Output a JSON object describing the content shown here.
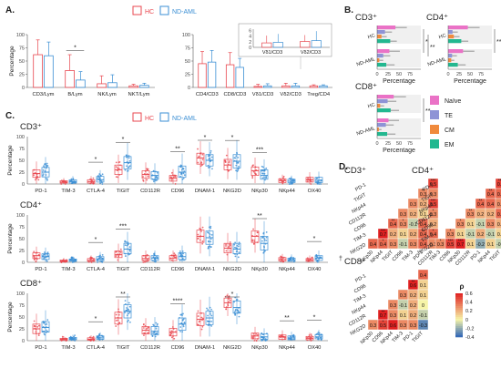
{
  "colors": {
    "hc": "#e8474f",
    "aml": "#3b8fd4",
    "naive": "#ea72c6",
    "te": "#8e93d6",
    "cm": "#f08a3c",
    "em": "#22b890",
    "rho_neg": "#2c63b8",
    "rho_mid": "#f6f4a8",
    "rho_pos": "#e02020"
  },
  "legend": {
    "hc": "HC",
    "aml": "ND-AML"
  },
  "chart_data": [
    {
      "id": "A1",
      "panel": "A.",
      "type": "bar",
      "ylabel": "Percentage",
      "ylim": [
        0,
        100
      ],
      "yticks": [
        "0",
        "25",
        "50",
        "75",
        "100"
      ],
      "categories": [
        "CD3/Lym",
        "B/Lym",
        "NK/Lym",
        "NKT/Lym"
      ],
      "series": [
        {
          "name": "HC",
          "values": [
            62,
            32,
            7,
            3
          ],
          "err": [
            90,
            62,
            22,
            6
          ]
        },
        {
          "name": "ND-AML",
          "values": [
            60,
            14,
            9,
            4
          ],
          "err": [
            86,
            30,
            24,
            8
          ]
        }
      ],
      "sig": [
        {
          "index": 1,
          "label": "*"
        }
      ]
    },
    {
      "id": "A2",
      "type": "bar",
      "ylim": [
        0,
        100
      ],
      "yticks": [
        "0",
        "25",
        "50",
        "75",
        "100"
      ],
      "categories": [
        "CD4/CD3",
        "CD8/CD3",
        "Vδ1/CD3",
        "Vδ2/CD3",
        "Treg/CD4"
      ],
      "series": [
        {
          "name": "HC",
          "values": [
            45,
            43,
            2,
            3,
            3
          ],
          "err": [
            68,
            66,
            6,
            8,
            5
          ]
        },
        {
          "name": "ND-AML",
          "values": [
            48,
            38,
            3,
            3,
            3
          ],
          "err": [
            70,
            55,
            7,
            8,
            5
          ]
        }
      ],
      "inset": {
        "categories": [
          "Vδ1/CD3",
          "Vδ2/CD3"
        ],
        "yticks": [
          "0",
          "2",
          "4",
          "6"
        ],
        "ylim": [
          0,
          6.5
        ],
        "series": [
          {
            "name": "HC",
            "values": [
              1.6,
              2.1
            ],
            "err": [
              4.2,
              4.4
            ]
          },
          {
            "name": "ND-AML",
            "values": [
              1.8,
              2.4
            ],
            "err": [
              4.8,
              5.8
            ]
          }
        ]
      }
    },
    {
      "id": "B-CD3",
      "panel": "B.",
      "title": "CD3⁺",
      "type": "bar",
      "xlabel": "Percentage",
      "xlim": [
        0,
        100
      ],
      "xticks": [
        "0",
        "25",
        "50",
        "75"
      ],
      "groups": [
        "HC",
        "ND-AML"
      ],
      "subsets": [
        "Naïve",
        "TE",
        "CM",
        "EM"
      ],
      "values": {
        "HC": [
          42,
          18,
          10,
          30
        ],
        "ND-AML": [
          28,
          14,
          5,
          21
        ]
      },
      "err": {
        "HC": [
          68,
          34,
          22,
          45
        ],
        "ND-AML": [
          52,
          30,
          14,
          40
        ]
      },
      "sig": [
        "*",
        "**"
      ]
    },
    {
      "id": "B-CD4",
      "title": "CD4⁺",
      "type": "bar",
      "xlabel": "Percentage",
      "xlim": [
        0,
        100
      ],
      "xticks": [
        "0",
        "25",
        "50",
        "75"
      ],
      "groups": [
        "HC",
        "ND-AML"
      ],
      "subsets": [
        "Naïve",
        "TE",
        "CM",
        "EM"
      ],
      "values": {
        "HC": [
          45,
          10,
          13,
          30
        ],
        "ND-AML": [
          34,
          9,
          7,
          22
        ]
      },
      "err": {
        "HC": [
          72,
          22,
          26,
          46
        ],
        "ND-AML": [
          60,
          20,
          14,
          40
        ]
      },
      "sig": [
        "**"
      ]
    },
    {
      "id": "B-CD8",
      "title": "CD8⁺",
      "type": "bar",
      "xlabel": "Percentage",
      "xlim": [
        0,
        100
      ],
      "xticks": [
        "0",
        "25",
        "50",
        "75"
      ],
      "groups": [
        "HC",
        "ND-AML"
      ],
      "subsets": [
        "Naïve",
        "TE",
        "CM",
        "EM"
      ],
      "values": {
        "HC": [
          38,
          24,
          7,
          31
        ],
        "ND-AML": [
          26,
          20,
          4,
          23
        ]
      },
      "err": {
        "HC": [
          66,
          44,
          16,
          50
        ],
        "ND-AML": [
          50,
          38,
          10,
          42
        ]
      },
      "sig": [
        "**"
      ],
      "legend": [
        "Naïve",
        "TE",
        "CM",
        "EM"
      ]
    },
    {
      "id": "C-CD3",
      "panel": "C.",
      "title": "CD3⁺",
      "type": "scatter",
      "ylabel": "Percentage",
      "ylim": [
        0,
        100
      ],
      "yticks": [
        "0",
        "25",
        "50",
        "75",
        "100"
      ],
      "categories": [
        "PD-1",
        "TIM-3",
        "CTLA-4",
        "TIGIT",
        "CD112R",
        "CD96",
        "DNAM-1",
        "NKG2D",
        "NKp30",
        "NKp44",
        "OX40"
      ],
      "median": {
        "HC": [
          22,
          4,
          5,
          30,
          20,
          12,
          55,
          40,
          28,
          7,
          9
        ],
        "ND-AML": [
          25,
          5,
          9,
          45,
          18,
          25,
          50,
          48,
          18,
          6,
          8
        ]
      },
      "q": {
        "HC": [
          [
            14,
            30
          ],
          [
            2,
            7
          ],
          [
            2,
            9
          ],
          [
            20,
            40
          ],
          [
            12,
            28
          ],
          [
            6,
            18
          ],
          [
            42,
            65
          ],
          [
            30,
            52
          ],
          [
            18,
            36
          ],
          [
            3,
            11
          ],
          [
            4,
            14
          ]
        ],
        "ND-AML": [
          [
            15,
            35
          ],
          [
            2,
            9
          ],
          [
            4,
            16
          ],
          [
            32,
            58
          ],
          [
            10,
            26
          ],
          [
            14,
            38
          ],
          [
            38,
            62
          ],
          [
            34,
            62
          ],
          [
            10,
            30
          ],
          [
            3,
            10
          ],
          [
            3,
            14
          ]
        ]
      },
      "sig": [
        null,
        null,
        "*",
        "*",
        null,
        "**",
        "*",
        "*",
        "***",
        null,
        null
      ]
    },
    {
      "id": "C-CD4",
      "title": "CD4⁺",
      "type": "scatter",
      "ylabel": "Percentage",
      "ylim": [
        0,
        100
      ],
      "yticks": [
        "0",
        "25",
        "50",
        "75",
        "100"
      ],
      "categories": [
        "PD-1",
        "TIM-3",
        "CTLA-4",
        "TIGIT",
        "CD112R",
        "CD96",
        "DNAM-1",
        "NKG2D",
        "NKp30",
        "NKp44",
        "OX40"
      ],
      "median": {
        "HC": [
          14,
          3,
          4,
          16,
          8,
          9,
          55,
          30,
          55,
          6,
          5
        ],
        "ND-AML": [
          12,
          4,
          7,
          28,
          9,
          12,
          52,
          28,
          40,
          5,
          9
        ]
      },
      "q": {
        "HC": [
          [
            8,
            20
          ],
          [
            1,
            5
          ],
          [
            2,
            8
          ],
          [
            10,
            24
          ],
          [
            4,
            14
          ],
          [
            4,
            14
          ],
          [
            42,
            68
          ],
          [
            20,
            40
          ],
          [
            42,
            66
          ],
          [
            3,
            10
          ],
          [
            2,
            8
          ]
        ],
        "ND-AML": [
          [
            6,
            18
          ],
          [
            2,
            7
          ],
          [
            3,
            12
          ],
          [
            18,
            40
          ],
          [
            4,
            14
          ],
          [
            6,
            20
          ],
          [
            38,
            66
          ],
          [
            18,
            40
          ],
          [
            26,
            55
          ],
          [
            2,
            9
          ],
          [
            4,
            14
          ]
        ]
      },
      "sig": [
        null,
        null,
        "*",
        "***",
        null,
        null,
        null,
        null,
        "**",
        null,
        "*"
      ]
    },
    {
      "id": "C-CD8",
      "title": "CD8⁺",
      "type": "scatter",
      "ylabel": "Percentage",
      "ylim": [
        0,
        100
      ],
      "yticks": [
        "0",
        "25",
        "50",
        "75",
        "100"
      ],
      "categories": [
        "PD-1",
        "TIM-3",
        "CTLA-4",
        "TIGIT",
        "CD112R",
        "CD96",
        "DNAM-1",
        "NKG2D",
        "NKp30",
        "NKp44",
        "OX40"
      ],
      "median": {
        "HC": [
          25,
          3,
          3,
          48,
          22,
          18,
          45,
          80,
          10,
          8,
          5
        ],
        "ND-AML": [
          28,
          4,
          6,
          62,
          20,
          35,
          48,
          70,
          8,
          6,
          8
        ]
      },
      "q": {
        "HC": [
          [
            15,
            35
          ],
          [
            1,
            5
          ],
          [
            1,
            6
          ],
          [
            35,
            60
          ],
          [
            14,
            30
          ],
          [
            10,
            26
          ],
          [
            32,
            58
          ],
          [
            70,
            90
          ],
          [
            4,
            16
          ],
          [
            3,
            12
          ],
          [
            2,
            9
          ]
        ],
        "ND-AML": [
          [
            18,
            40
          ],
          [
            2,
            7
          ],
          [
            3,
            10
          ],
          [
            48,
            76
          ],
          [
            12,
            30
          ],
          [
            22,
            48
          ],
          [
            34,
            62
          ],
          [
            58,
            84
          ],
          [
            3,
            14
          ],
          [
            2,
            10
          ],
          [
            4,
            13
          ]
        ]
      },
      "sig": [
        null,
        null,
        "*",
        "**",
        null,
        "****",
        null,
        "*",
        null,
        "**",
        "*"
      ]
    },
    {
      "id": "D-CD3",
      "panel": "D.",
      "title": "CD3⁺",
      "type": "heatmap",
      "labels": [
        "PD-1",
        "TIM-3",
        "TIGIT",
        "CD112R",
        "CD96",
        "NKG2D",
        "NKp30",
        "NKp44"
      ],
      "rows": [
        "PD-1",
        "TIGIT",
        "NKp44",
        "CD112R",
        "CD96",
        "TIM-3",
        "NKG2D"
      ],
      "cols": [
        "NKp30",
        "NKp44",
        "TIGIT",
        "CD96",
        "TIM-3",
        "PD-1",
        "CD112R"
      ],
      "matrix": [
        [
          null,
          null,
          null,
          null,
          null,
          null,
          0.5
        ],
        [
          null,
          null,
          null,
          null,
          null,
          0.3,
          0.3
        ],
        [
          null,
          null,
          null,
          null,
          0.3,
          0.2,
          0.5
        ],
        [
          null,
          null,
          null,
          0.3,
          0.2,
          0.1,
          0.3
        ],
        [
          null,
          null,
          0.4,
          0.3,
          -0.1,
          0.4,
          0.2
        ],
        [
          null,
          0.7,
          0.2,
          0.1,
          0.2,
          0.4,
          0.4
        ],
        [
          0.4,
          0.4,
          0.3,
          -0.1,
          0.3,
          0.4,
          0.3
        ]
      ],
      "stars": [
        [
          null,
          null,
          null,
          null,
          null,
          null,
          "***"
        ],
        [
          null,
          null,
          null,
          null,
          null,
          "**",
          null
        ],
        [
          null,
          null,
          null,
          null,
          null,
          null,
          "***"
        ],
        [
          null,
          null,
          null,
          null,
          null,
          null,
          "*"
        ],
        [
          null,
          null,
          "**",
          "*",
          null,
          "**",
          null
        ],
        [
          null,
          "***",
          null,
          null,
          null,
          "**",
          "*"
        ],
        [
          null,
          "*",
          null,
          null,
          null,
          "*",
          null
        ]
      ]
    },
    {
      "id": "D-CD4",
      "title": "CD4⁺",
      "type": "heatmap",
      "rows": [
        "PD-1",
        "TIGIT",
        "NKp44",
        "CD112R",
        "CD96",
        "TIM-3",
        "NKG2D"
      ],
      "cols": [
        "TIM-3",
        "CD96",
        "NKp30",
        "CD112R",
        "PD-1",
        "NKp44",
        "TIGIT"
      ],
      "matrix": [
        [
          null,
          null,
          null,
          null,
          null,
          null,
          0.5
        ],
        [
          null,
          null,
          null,
          null,
          null,
          0.4,
          0.4
        ],
        [
          null,
          null,
          null,
          null,
          0.4,
          0.4,
          0.3
        ],
        [
          null,
          null,
          null,
          0.3,
          0.2,
          0.2,
          0.4
        ],
        [
          null,
          null,
          0.3,
          0.1,
          -0.1,
          0.3,
          0.2
        ],
        [
          null,
          0.3,
          0.1,
          -0.1,
          0.2,
          -0.1,
          0.1
        ],
        [
          0.3,
          0.5,
          0.7,
          0.1,
          -0.2,
          0.1,
          -0.1
        ]
      ],
      "stars": [
        [
          null,
          null,
          null,
          null,
          null,
          null,
          "***"
        ],
        [
          null,
          null,
          null,
          null,
          null,
          "**",
          null
        ],
        [
          null,
          null,
          null,
          null,
          "**",
          null,
          null
        ],
        [
          null,
          null,
          null,
          "**",
          null,
          null,
          null
        ],
        [
          null,
          null,
          "*",
          null,
          null,
          null,
          null
        ],
        [
          null,
          "*",
          null,
          null,
          null,
          null,
          null
        ],
        [
          "*",
          "***",
          "***",
          null,
          null,
          null,
          null
        ]
      ]
    },
    {
      "id": "D-CD8",
      "title": "CD8⁺",
      "marker": "†",
      "type": "heatmap",
      "rows": [
        "PD-1",
        "CD96",
        "TIM-3",
        "NKp44",
        "CD112R",
        "NKG2D"
      ],
      "cols": [
        "NKp30",
        "CD96",
        "NKp44",
        "TIM-3",
        "PD-1",
        "TIGIT"
      ],
      "matrix": [
        [
          null,
          null,
          null,
          null,
          null,
          0.4
        ],
        [
          null,
          null,
          null,
          null,
          0.6,
          0.1
        ],
        [
          null,
          null,
          null,
          0.3,
          0.2,
          0.1
        ],
        [
          null,
          null,
          0.3,
          -0.1,
          0.2,
          0.0
        ],
        [
          null,
          0.7,
          0.3,
          0.1,
          0.2,
          -0.1
        ],
        [
          0.3,
          0.5,
          0.6,
          0.3,
          0.3,
          -0.3
        ]
      ],
      "stars": [
        [
          null,
          null,
          null,
          null,
          null,
          null
        ],
        [
          null,
          null,
          null,
          null,
          "**",
          null
        ],
        [
          null,
          null,
          null,
          null,
          null,
          null
        ],
        [
          null,
          null,
          null,
          null,
          null,
          null
        ],
        [
          null,
          "**",
          null,
          null,
          null,
          null
        ],
        [
          null,
          "*",
          null,
          null,
          null,
          null
        ]
      ]
    },
    {
      "id": "D-scale",
      "type": "colorbar",
      "title": "ρ",
      "ticks": [
        "0.6",
        "0.4",
        "0.2",
        "0",
        "-0.2",
        "-0.4"
      ],
      "range": [
        -0.4,
        0.6
      ]
    }
  ]
}
